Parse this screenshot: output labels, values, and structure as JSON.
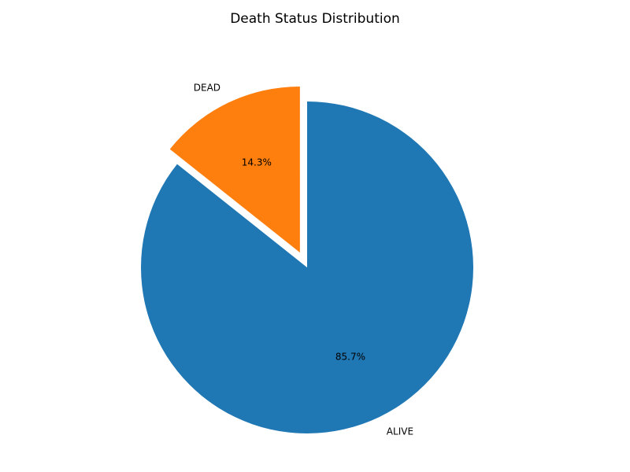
{
  "chart_data": {
    "type": "pie",
    "title": "Death Status Distribution",
    "slices": [
      {
        "label": "ALIVE",
        "percent": 85.7,
        "pct_label": "85.7%",
        "color": "#1f77b4",
        "exploded": false
      },
      {
        "label": "DEAD",
        "percent": 14.3,
        "pct_label": "14.3%",
        "color": "#ff7f0e",
        "exploded": true
      }
    ],
    "start_angle_deg": 90,
    "direction": "clockwise"
  }
}
